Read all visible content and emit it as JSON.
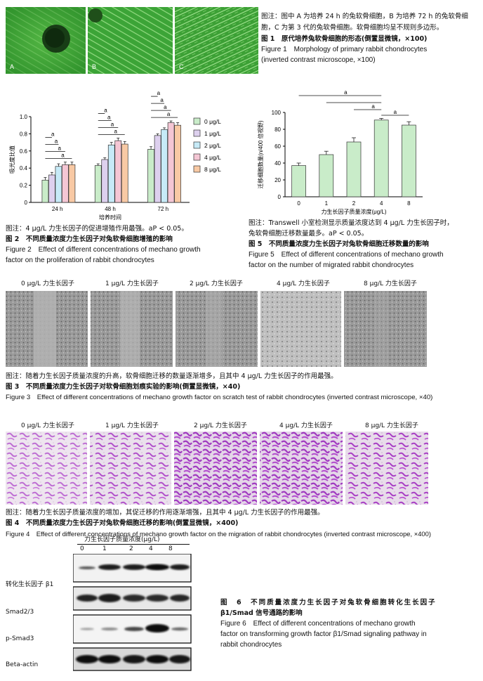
{
  "fig1": {
    "panels": [
      "A",
      "B",
      "C"
    ],
    "note": "图注：图中 A 为培养 24 h 的兔软骨细胞，B 为培养 72 h 的兔软骨细胞，C 为第 3 代的兔软骨细胞。软骨细胞均呈不规则多边形。",
    "title_cn": "图 1　原代培养兔软骨细胞的形态(倒置显微镜，×100)",
    "title_en_1": "Figure 1　Morphology of primary rabbit chondrocytes",
    "title_en_2": "(inverted contrast microscope, ×100)"
  },
  "fig2": {
    "note": "图注：4 μg/L 力生长因子的促进增殖作用最强。aP < 0.05。",
    "title_cn": "图 2　不同质量浓度力生长因子对兔软骨细胞增殖的影响",
    "title_en_1": "Figure 2　Effect of different concentrations of mechano growth",
    "title_en_2": "factor on the proliferation of rabbit chondrocytes"
  },
  "fig5": {
    "note_1": "图注：Transwell 小室检测显示质量浓度达到 4 μg/L 力生长因子时，",
    "note_2": "兔软骨细胞迁移数量最多。aP < 0.05。",
    "title_cn": "图 5　不同质量浓度力生长因子对兔软骨细胞迁移数量的影响",
    "title_en_1": "Figure 5　Effect of different concentrations of mechano growth",
    "title_en_2": "factor on the number of migrated rabbit chondrocytes"
  },
  "fig3": {
    "panel_labels": [
      "0 μg/L 力生长因子",
      "1 μg/L 力生长因子",
      "2 μg/L 力生长因子",
      "4 μg/L 力生长因子",
      "8 μg/L 力生长因子"
    ],
    "note": "图注：随着力生长因子质量浓度的升高，软骨细胞迁移的数量逐渐增多，且其中 4 μg/L 力生长因子的作用最强。",
    "title_cn": "图 3　不同质量浓度力生长因子对软骨细胞划痕实验的影响(倒置显微镜，×40)",
    "title_en": "Figure 3　Effect of different concentrations of mechano growth factor on scratch test of rabbit chondrocytes (inverted contrast microscope, ×40)"
  },
  "fig4": {
    "panel_labels": [
      "0 μg/L 力生长因子",
      "1 μg/L 力生长因子",
      "2 μg/L 力生长因子",
      "4 μg/L 力生长因子",
      "8 μg/L 力生长因子"
    ],
    "note": "图注：随着力生长因子质量浓度的增加，其促迁移的作用逐渐增强，且其中 4 μg/L 力生长因子的作用最强。",
    "title_cn": "图 4　不同质量浓度力生长因子对兔软骨细胞迁移的影响(倒置显微镜，×400)",
    "title_en": "Figure 4　Effect of different concentrations of mechano growth factor on the migration of rabbit chondrocytes (inverted contrast microscope, ×400)"
  },
  "fig6": {
    "header": "力生长因子质量浓度(μg/L)",
    "lanes": [
      "0",
      "1",
      "2",
      "4",
      "8"
    ],
    "rows": [
      "转化生长因子 β1",
      "Smad2/3",
      "p-Smad3",
      "Beta-actin"
    ],
    "title_cn_1": "图　6　不同质量浓度力生长因子对兔软骨细胞转化生长因子",
    "title_cn_2": "β1/Smad 信号通路的影响",
    "title_en_1": "Figure 6　Effect of different concentrations of mechano growth",
    "title_en_2": "factor on transforming growth factor β1/Smad signaling pathway in",
    "title_en_3": "rabbit chondrocytes"
  },
  "colors": {
    "s0": "#c9ecc9",
    "s1": "#ddd0ee",
    "s2": "#c6eaf7",
    "s3": "#f4c6d4",
    "s4": "#f8c9a4"
  },
  "chart_data": [
    {
      "type": "bar",
      "ylabel": "吸光度比值",
      "xlabel": "培养时间",
      "categories": [
        "24 h",
        "48 h",
        "72 h"
      ],
      "ylim": [
        0,
        1.0
      ],
      "yticks": [
        "0",
        "0.2",
        "0.4",
        "0.6",
        "0.8",
        "1.0"
      ],
      "legend": "right",
      "series": [
        {
          "name": "0 μg/L",
          "values": [
            0.26,
            0.43,
            0.62
          ],
          "errors": [
            0.03,
            0.02,
            0.03
          ]
        },
        {
          "name": "1 μg/L",
          "values": [
            0.32,
            0.5,
            0.78
          ],
          "errors": [
            0.03,
            0.02,
            0.02
          ]
        },
        {
          "name": "2 μg/L",
          "values": [
            0.42,
            0.67,
            0.85
          ],
          "errors": [
            0.03,
            0.03,
            0.02
          ]
        },
        {
          "name": "4 μg/L",
          "values": [
            0.44,
            0.72,
            0.93
          ],
          "errors": [
            0.03,
            0.03,
            0.02
          ]
        },
        {
          "name": "8 μg/L",
          "values": [
            0.44,
            0.68,
            0.9
          ],
          "errors": [
            0.03,
            0.03,
            0.03
          ]
        }
      ],
      "annotations": [
        "a"
      ]
    },
    {
      "type": "bar",
      "ylabel": "迁移细胞数量(n/400 倍视野)",
      "xlabel": "力生长因子质量浓度(μg/L)",
      "categories": [
        "0",
        "1",
        "2",
        "4",
        "8"
      ],
      "values": [
        37,
        50,
        65,
        91,
        85
      ],
      "errors": [
        3,
        4,
        5,
        2,
        4
      ],
      "ylim": [
        0,
        100
      ],
      "yticks": [
        "0",
        "20",
        "40",
        "60",
        "80",
        "100"
      ],
      "annotations": [
        "a"
      ]
    }
  ]
}
